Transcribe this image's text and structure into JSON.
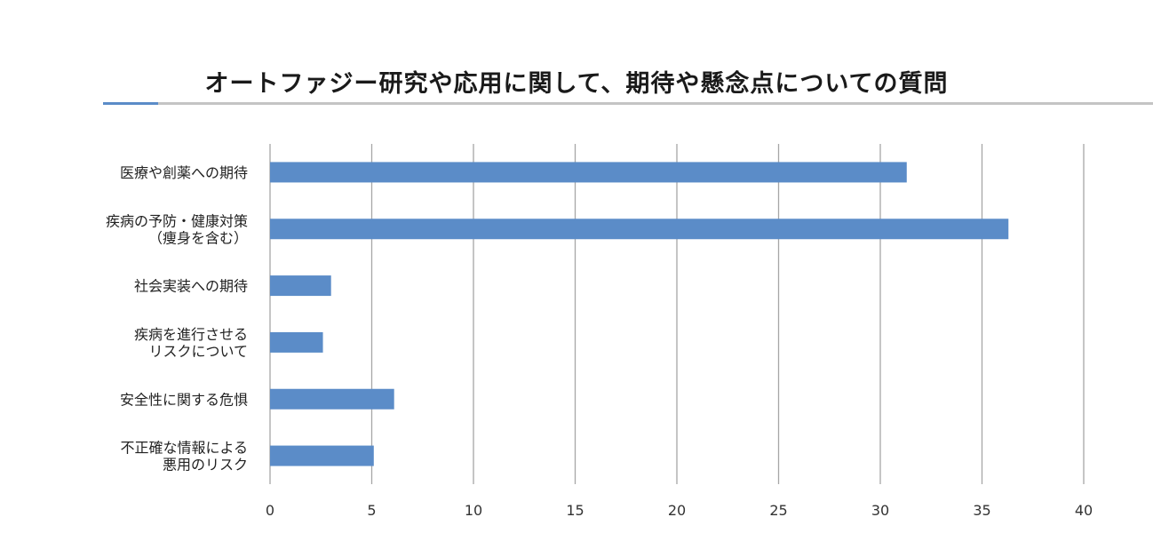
{
  "chart_data": {
    "type": "bar",
    "orientation": "horizontal",
    "title": "オートファジー研究や応用に関して、期待や懸念点についての質問",
    "categories": [
      [
        "医療や創薬への期待"
      ],
      [
        "疾病の予防・健康対策",
        "（痩身を含む）"
      ],
      [
        "社会実装への期待"
      ],
      [
        "疾病を進行させる",
        "リスクについて"
      ],
      [
        "安全性に関する危惧"
      ],
      [
        "不正確な情報による",
        "悪用のリスク"
      ]
    ],
    "values": [
      31.3,
      36.3,
      3.0,
      2.6,
      6.1,
      5.1
    ],
    "xlim": [
      0,
      40
    ],
    "xticks": [
      0,
      5,
      10,
      15,
      20,
      25,
      30,
      35,
      40
    ],
    "grid": "vertical",
    "legend": "none",
    "colors": {
      "bar": "#5b8cc8",
      "grid": "#a6a6a6",
      "accent": "#5b8cc8",
      "rule": "#c4c4c4"
    }
  }
}
